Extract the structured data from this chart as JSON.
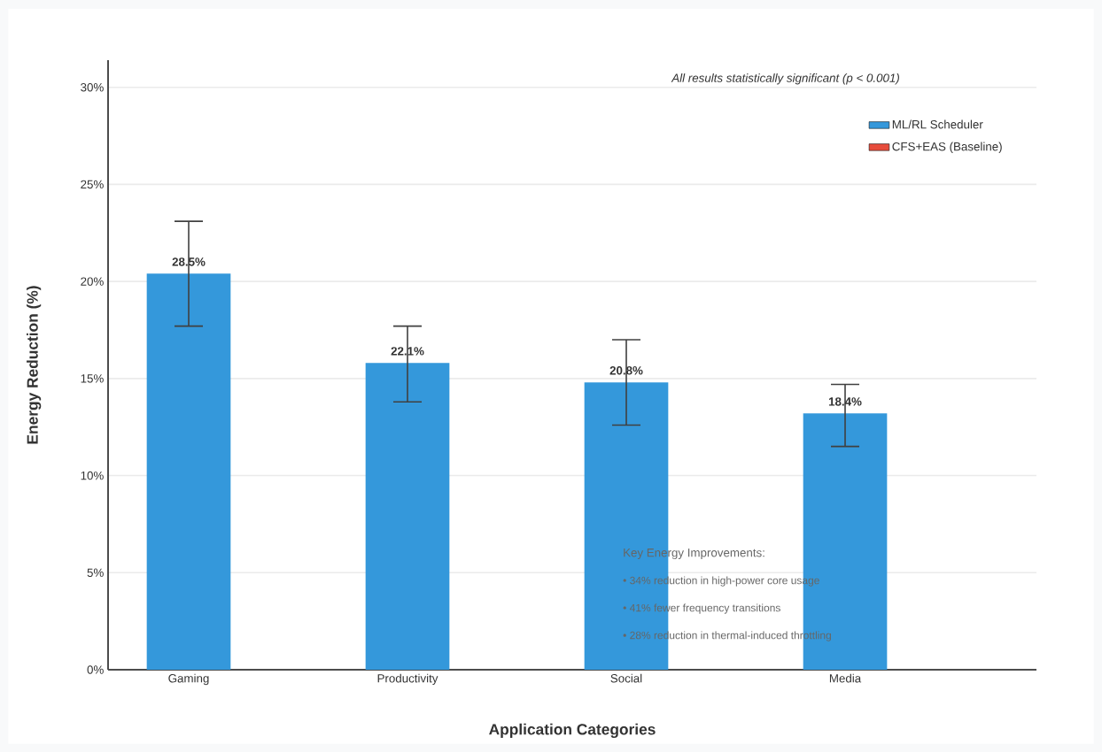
{
  "chart_data": {
    "type": "bar",
    "xlabel": "Application Categories",
    "ylabel": "Energy Reduction (%)",
    "categories": [
      "Gaming",
      "Productivity",
      "Social",
      "Media"
    ],
    "series": [
      {
        "name": "ML/RL Scheduler",
        "color": "#3498db",
        "values": [
          20.4,
          15.8,
          14.8,
          13.2
        ],
        "errors": [
          [
            17.7,
            23.1
          ],
          [
            13.8,
            17.7
          ],
          [
            12.6,
            17.0
          ],
          [
            11.5,
            14.7
          ]
        ]
      },
      {
        "name": "CFS+EAS (Baseline)",
        "color": "#e74c3c",
        "values": [
          null,
          null,
          null,
          null
        ]
      }
    ],
    "ylim": [
      0,
      31.4
    ],
    "yticks": [
      {
        "value": 0,
        "label": "0%"
      },
      {
        "value": 5,
        "label": "5%"
      },
      {
        "value": 10,
        "label": "10%"
      },
      {
        "value": 15,
        "label": "15%"
      },
      {
        "value": 20,
        "label": "20%"
      },
      {
        "value": 25,
        "label": "25%"
      },
      {
        "value": 30,
        "label": "30%"
      }
    ],
    "grid": "y",
    "legend": "top right",
    "annotations": [
      {
        "text": "28.5%",
        "x": "Gaming",
        "y": 20.4
      },
      {
        "text": "22.1%",
        "x": "Productivity",
        "y": 15.8
      },
      {
        "text": "20.8%",
        "x": "Social",
        "y": 14.8
      },
      {
        "text": "18.4%",
        "x": "Media",
        "y": 13.2
      },
      "All results statistically significant (p < 0.001)",
      "Key Energy Improvements:",
      "• 34% reduction in high-power core usage",
      "• 41% fewer frequency transitions",
      "• 28% reduction in thermal-induced throttling"
    ]
  }
}
